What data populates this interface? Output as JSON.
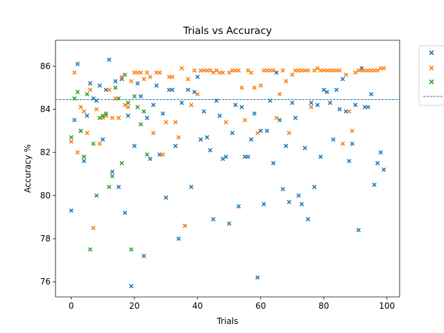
{
  "chart_data": {
    "type": "scatter",
    "title": "Trials vs Accuracy",
    "xlabel": "Trials",
    "ylabel": "Accuracy %",
    "xlim": [
      -5,
      104
    ],
    "ylim": [
      75.3,
      87.2
    ],
    "xticks": [
      0,
      20,
      40,
      60,
      80,
      100
    ],
    "yticks": [
      76,
      78,
      80,
      82,
      84,
      86
    ],
    "grid": false,
    "legend_position": "upper right, outside the axes",
    "reference_line": {
      "y": 84.45,
      "style": "dashed",
      "color": "#1f77b4"
    },
    "series": [
      {
        "color": "#1f77b4",
        "marker": "x",
        "points": [
          [
            0,
            79.3
          ],
          [
            1,
            83.5
          ],
          [
            2,
            86.1
          ],
          [
            3,
            83.0
          ],
          [
            4,
            81.6
          ],
          [
            5,
            83.7
          ],
          [
            6,
            85.2
          ],
          [
            7,
            84.5
          ],
          [
            8,
            84.4
          ],
          [
            9,
            85.1
          ],
          [
            10,
            82.6
          ],
          [
            11,
            84.9
          ],
          [
            12,
            86.3
          ],
          [
            13,
            81.1
          ],
          [
            14,
            85.3
          ],
          [
            15,
            80.4
          ],
          [
            16,
            85.4
          ],
          [
            17,
            79.2
          ],
          [
            18,
            83.7
          ],
          [
            19,
            75.8
          ],
          [
            20,
            82.3
          ],
          [
            21,
            85.2
          ],
          [
            22,
            84.6
          ],
          [
            23,
            77.2
          ],
          [
            24,
            83.6
          ],
          [
            25,
            81.7
          ],
          [
            26,
            84.2
          ],
          [
            27,
            85.1
          ],
          [
            28,
            81.9
          ],
          [
            29,
            83.8
          ],
          [
            30,
            79.9
          ],
          [
            31,
            84.9
          ],
          [
            32,
            84.9
          ],
          [
            33,
            82.3
          ],
          [
            34,
            78.0
          ],
          [
            35,
            84.3
          ],
          [
            36,
            78.6
          ],
          [
            37,
            84.9
          ],
          [
            38,
            80.4
          ],
          [
            39,
            84.8
          ],
          [
            40,
            85.5
          ],
          [
            41,
            82.6
          ],
          [
            42,
            83.9
          ],
          [
            43,
            82.7
          ],
          [
            44,
            82.1
          ],
          [
            45,
            78.9
          ],
          [
            46,
            84.4
          ],
          [
            47,
            83.7
          ],
          [
            48,
            81.7
          ],
          [
            49,
            81.8
          ],
          [
            50,
            78.7
          ],
          [
            51,
            82.9
          ],
          [
            52,
            84.2
          ],
          [
            53,
            79.5
          ],
          [
            54,
            84.1
          ],
          [
            55,
            81.8
          ],
          [
            56,
            81.8
          ],
          [
            57,
            82.6
          ],
          [
            58,
            83.8
          ],
          [
            59,
            76.2
          ],
          [
            60,
            83.0
          ],
          [
            61,
            79.6
          ],
          [
            62,
            83.0
          ],
          [
            63,
            84.4
          ],
          [
            64,
            81.5
          ],
          [
            65,
            85.7
          ],
          [
            66,
            83.5
          ],
          [
            67,
            80.3
          ],
          [
            68,
            82.3
          ],
          [
            69,
            79.7
          ],
          [
            70,
            84.3
          ],
          [
            71,
            83.6
          ],
          [
            72,
            80.0
          ],
          [
            73,
            79.6
          ],
          [
            74,
            82.2
          ],
          [
            75,
            78.9
          ],
          [
            76,
            84.3
          ],
          [
            77,
            80.4
          ],
          [
            78,
            84.2
          ],
          [
            79,
            81.8
          ],
          [
            80,
            84.9
          ],
          [
            81,
            84.8
          ],
          [
            82,
            84.3
          ],
          [
            83,
            82.6
          ],
          [
            84,
            84.9
          ],
          [
            85,
            84.0
          ],
          [
            86,
            85.4
          ],
          [
            87,
            83.9
          ],
          [
            88,
            81.6
          ],
          [
            89,
            82.4
          ],
          [
            90,
            84.2
          ],
          [
            91,
            78.4
          ],
          [
            92,
            85.9
          ],
          [
            93,
            84.1
          ],
          [
            94,
            84.1
          ],
          [
            95,
            84.7
          ],
          [
            96,
            80.5
          ],
          [
            97,
            81.5
          ],
          [
            98,
            82.0
          ],
          [
            99,
            81.2
          ]
        ]
      },
      {
        "color": "#ff7f0e",
        "marker": "x",
        "points": [
          [
            0,
            82.5
          ],
          [
            1,
            85.7
          ],
          [
            2,
            82.0
          ],
          [
            3,
            84.1
          ],
          [
            4,
            83.9
          ],
          [
            5,
            82.9
          ],
          [
            6,
            84.9
          ],
          [
            7,
            78.5
          ],
          [
            8,
            84.0
          ],
          [
            9,
            82.4
          ],
          [
            10,
            83.6
          ],
          [
            11,
            83.7
          ],
          [
            12,
            84.9
          ],
          [
            13,
            83.6
          ],
          [
            14,
            84.5
          ],
          [
            15,
            83.6
          ],
          [
            16,
            85.5
          ],
          [
            17,
            84.2
          ],
          [
            18,
            84.1
          ],
          [
            19,
            85.3
          ],
          [
            20,
            85.7
          ],
          [
            21,
            85.7
          ],
          [
            22,
            85.7
          ],
          [
            23,
            85.4
          ],
          [
            24,
            85.7
          ],
          [
            25,
            85.5
          ],
          [
            26,
            82.9
          ],
          [
            27,
            85.7
          ],
          [
            28,
            85.7
          ],
          [
            29,
            81.9
          ],
          [
            30,
            83.4
          ],
          [
            31,
            85.5
          ],
          [
            32,
            85.5
          ],
          [
            33,
            83.4
          ],
          [
            34,
            82.7
          ],
          [
            35,
            85.9
          ],
          [
            36,
            78.6
          ],
          [
            37,
            85.4
          ],
          [
            38,
            84.2
          ],
          [
            39,
            85.8
          ],
          [
            40,
            84.7
          ],
          [
            41,
            85.8
          ],
          [
            42,
            85.8
          ],
          [
            43,
            85.8
          ],
          [
            44,
            85.8
          ],
          [
            45,
            85.7
          ],
          [
            46,
            85.8
          ],
          [
            47,
            85.7
          ],
          [
            48,
            85.7
          ],
          [
            49,
            83.4
          ],
          [
            50,
            85.7
          ],
          [
            51,
            85.8
          ],
          [
            52,
            85.8
          ],
          [
            53,
            85.8
          ],
          [
            54,
            85.0
          ],
          [
            55,
            83.5
          ],
          [
            56,
            85.8
          ],
          [
            57,
            85.7
          ],
          [
            58,
            85.0
          ],
          [
            59,
            82.9
          ],
          [
            60,
            85.1
          ],
          [
            61,
            85.8
          ],
          [
            62,
            85.8
          ],
          [
            63,
            85.8
          ],
          [
            64,
            85.8
          ],
          [
            65,
            83.6
          ],
          [
            66,
            84.7
          ],
          [
            67,
            85.8
          ],
          [
            68,
            85.3
          ],
          [
            69,
            82.9
          ],
          [
            70,
            85.6
          ],
          [
            71,
            85.8
          ],
          [
            72,
            85.8
          ],
          [
            73,
            85.8
          ],
          [
            74,
            85.8
          ],
          [
            75,
            85.8
          ],
          [
            76,
            84.1
          ],
          [
            77,
            85.8
          ],
          [
            78,
            85.9
          ],
          [
            79,
            85.8
          ],
          [
            80,
            85.8
          ],
          [
            81,
            85.8
          ],
          [
            82,
            85.8
          ],
          [
            83,
            85.8
          ],
          [
            84,
            85.8
          ],
          [
            85,
            85.8
          ],
          [
            86,
            82.4
          ],
          [
            87,
            85.6
          ],
          [
            88,
            83.9
          ],
          [
            89,
            83.0
          ],
          [
            90,
            85.7
          ],
          [
            91,
            85.8
          ],
          [
            92,
            85.8
          ],
          [
            93,
            85.8
          ],
          [
            94,
            85.8
          ],
          [
            95,
            85.8
          ],
          [
            96,
            85.8
          ],
          [
            97,
            85.8
          ],
          [
            98,
            85.9
          ],
          [
            99,
            85.9
          ]
        ]
      },
      {
        "color": "#2ca02c",
        "marker": "x",
        "points": [
          [
            0,
            82.7
          ],
          [
            1,
            84.5
          ],
          [
            2,
            84.8
          ],
          [
            3,
            83.0
          ],
          [
            4,
            81.8
          ],
          [
            5,
            84.7
          ],
          [
            6,
            77.5
          ],
          [
            7,
            82.4
          ],
          [
            8,
            80.0
          ],
          [
            9,
            83.6
          ],
          [
            10,
            83.7
          ],
          [
            11,
            83.8
          ],
          [
            12,
            80.4
          ],
          [
            13,
            80.9
          ],
          [
            14,
            85.0
          ],
          [
            15,
            84.5
          ],
          [
            16,
            81.5
          ],
          [
            17,
            85.6
          ],
          [
            18,
            84.3
          ],
          [
            19,
            77.5
          ],
          [
            20,
            84.6
          ],
          [
            21,
            84.1
          ],
          [
            22,
            83.3
          ],
          [
            23,
            83.9
          ],
          [
            24,
            81.9
          ]
        ]
      }
    ]
  }
}
